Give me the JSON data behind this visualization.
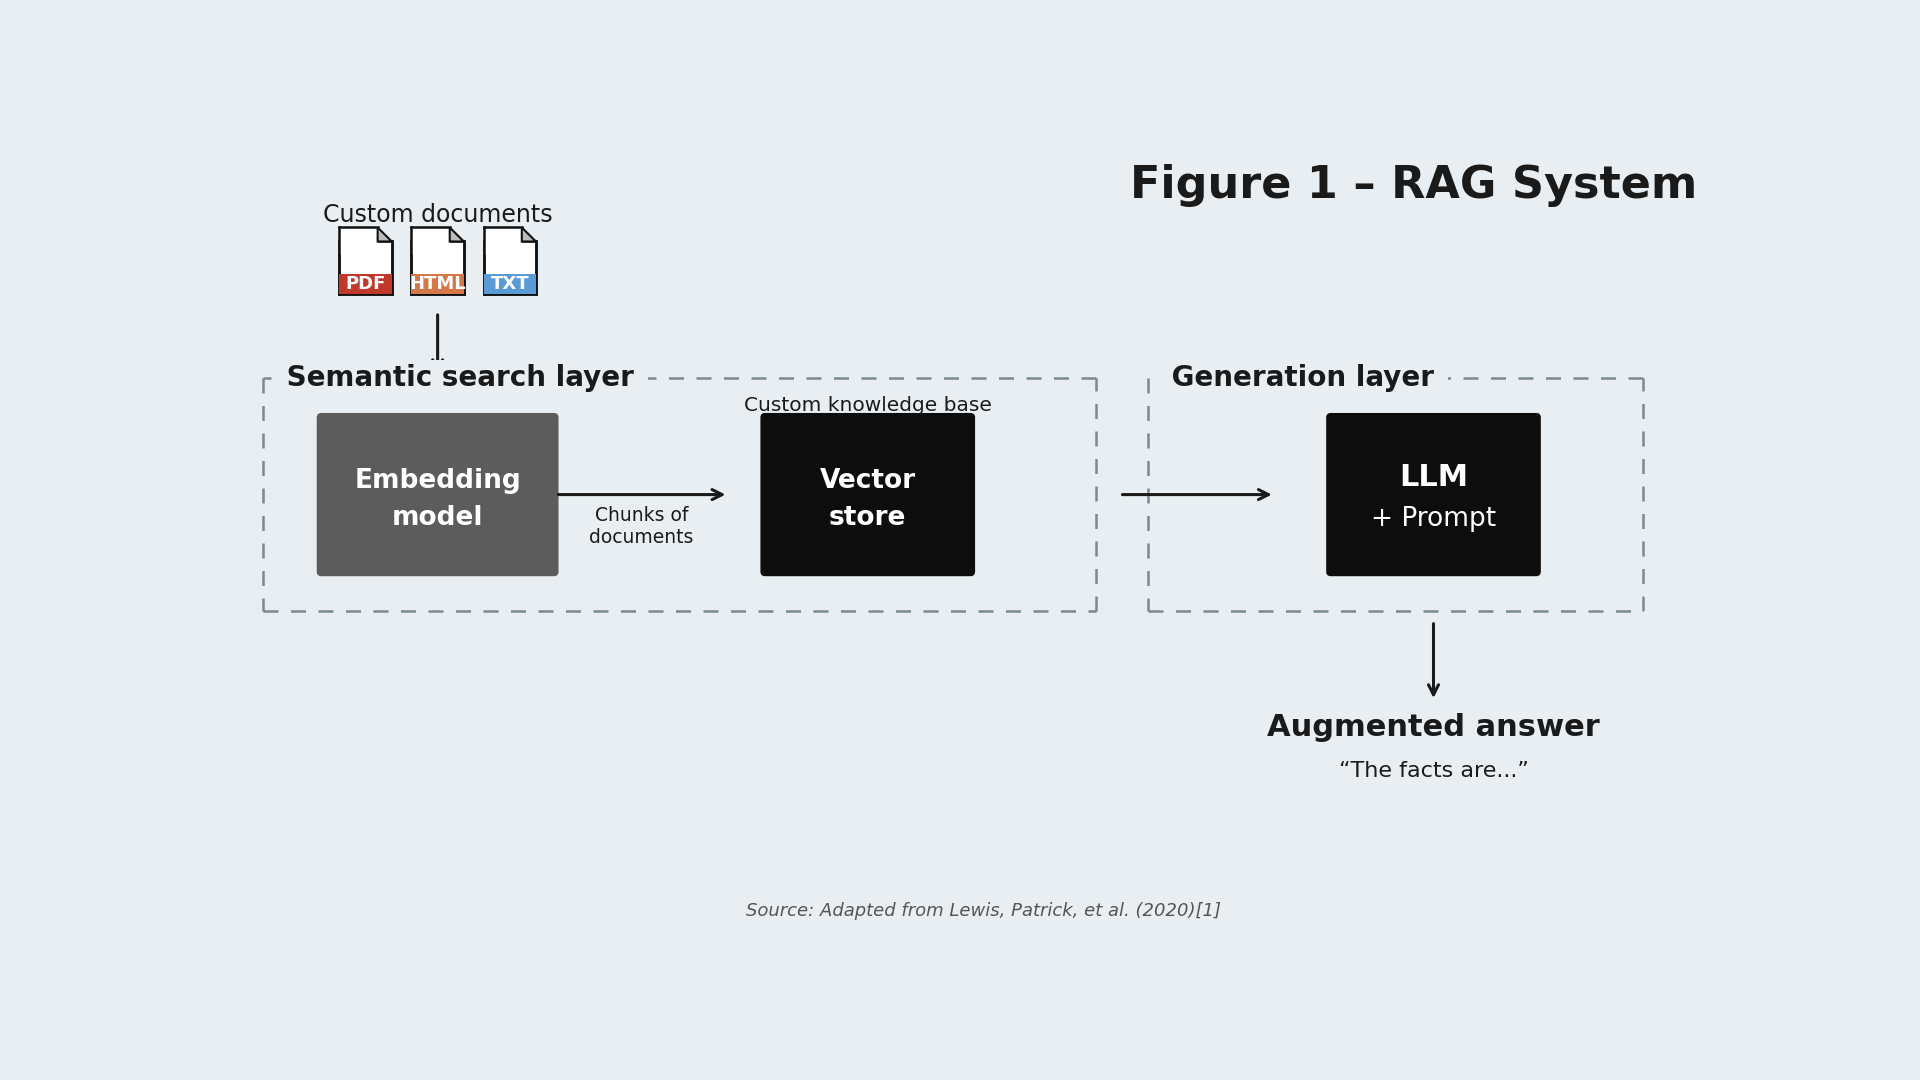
{
  "title": "Figure 1 – RAG System",
  "bg_color": "#e8eef1",
  "title_color": "#1a1a1a",
  "title_fontsize": 32,
  "title_fontweight": "bold",
  "doc_labels": [
    "PDF",
    "HTML",
    "TXT"
  ],
  "doc_colors": [
    "#c0392b",
    "#d4784a",
    "#5b9bd5"
  ],
  "doc_label_color": "#ffffff",
  "doc_header": "Custom documents",
  "doc_header_fontsize": 17,
  "semantic_label": "Semantic search layer",
  "generation_label": "Generation layer",
  "layer_label_color": "#1a1a1a",
  "layer_label_fontsize": 20,
  "layer_label_fontweight": "bold",
  "dashed_box_color": "#7a8a92",
  "embed_box_color": "#5c5c5c",
  "embed_text_line1": "Embedding",
  "embed_text_line2": "model",
  "embed_text_color": "#ffffff",
  "embed_text_fontsize": 19,
  "embed_text_fontweight": "bold",
  "vector_box_color": "#0d0d0d",
  "vector_text_line1": "Vector",
  "vector_text_line2": "store",
  "vector_text_color": "#ffffff",
  "vector_text_fontsize": 19,
  "vector_text_fontweight": "bold",
  "llm_box_color": "#0d0d0d",
  "llm_text_line1": "LLM",
  "llm_text_line2": "+ Prompt",
  "llm_text_color": "#ffffff",
  "llm_text_fontsize": 19,
  "llm_text_fontweight": "bold",
  "chunks_label": "Chunks of\ndocuments",
  "knowledge_base_label": "Custom knowledge base",
  "arrow_color": "#1a1a1a",
  "augmented_title": "Augmented answer",
  "augmented_subtitle": "“The facts are...”",
  "augmented_title_fontsize": 22,
  "augmented_title_fontweight": "bold",
  "augmented_subtitle_fontsize": 16,
  "source_text": "Source: Adapted from Lewis, Patrick, et al. (2020)[1]",
  "source_fontsize": 13,
  "source_color": "#555555"
}
